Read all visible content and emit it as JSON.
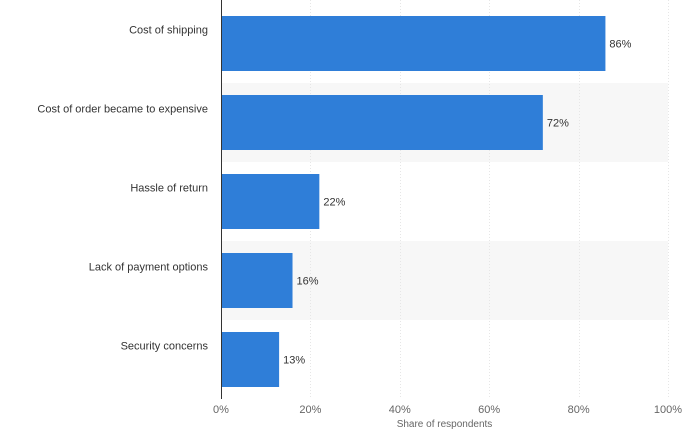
{
  "chart_data": {
    "type": "bar",
    "orientation": "horizontal",
    "categories": [
      "Cost of shipping",
      "Cost of order became to expensive",
      "Hassle of return",
      "Lack of payment options",
      "Security concerns"
    ],
    "values": [
      86,
      72,
      22,
      16,
      13
    ],
    "value_labels": [
      "86%",
      "72%",
      "22%",
      "16%",
      "13%"
    ],
    "xlabel": "Share of respondents",
    "xlim": [
      0,
      100
    ],
    "x_ticks": [
      0,
      20,
      40,
      60,
      80,
      100
    ],
    "x_tick_labels": [
      "0%",
      "20%",
      "40%",
      "60%",
      "80%",
      "100%"
    ],
    "grid": true,
    "alternating_row_bands": true,
    "bar_color": "#2f7ed8",
    "band_color": "#f7f7f7",
    "grid_color": "#e6e6e6",
    "axis_color": "#333333"
  }
}
